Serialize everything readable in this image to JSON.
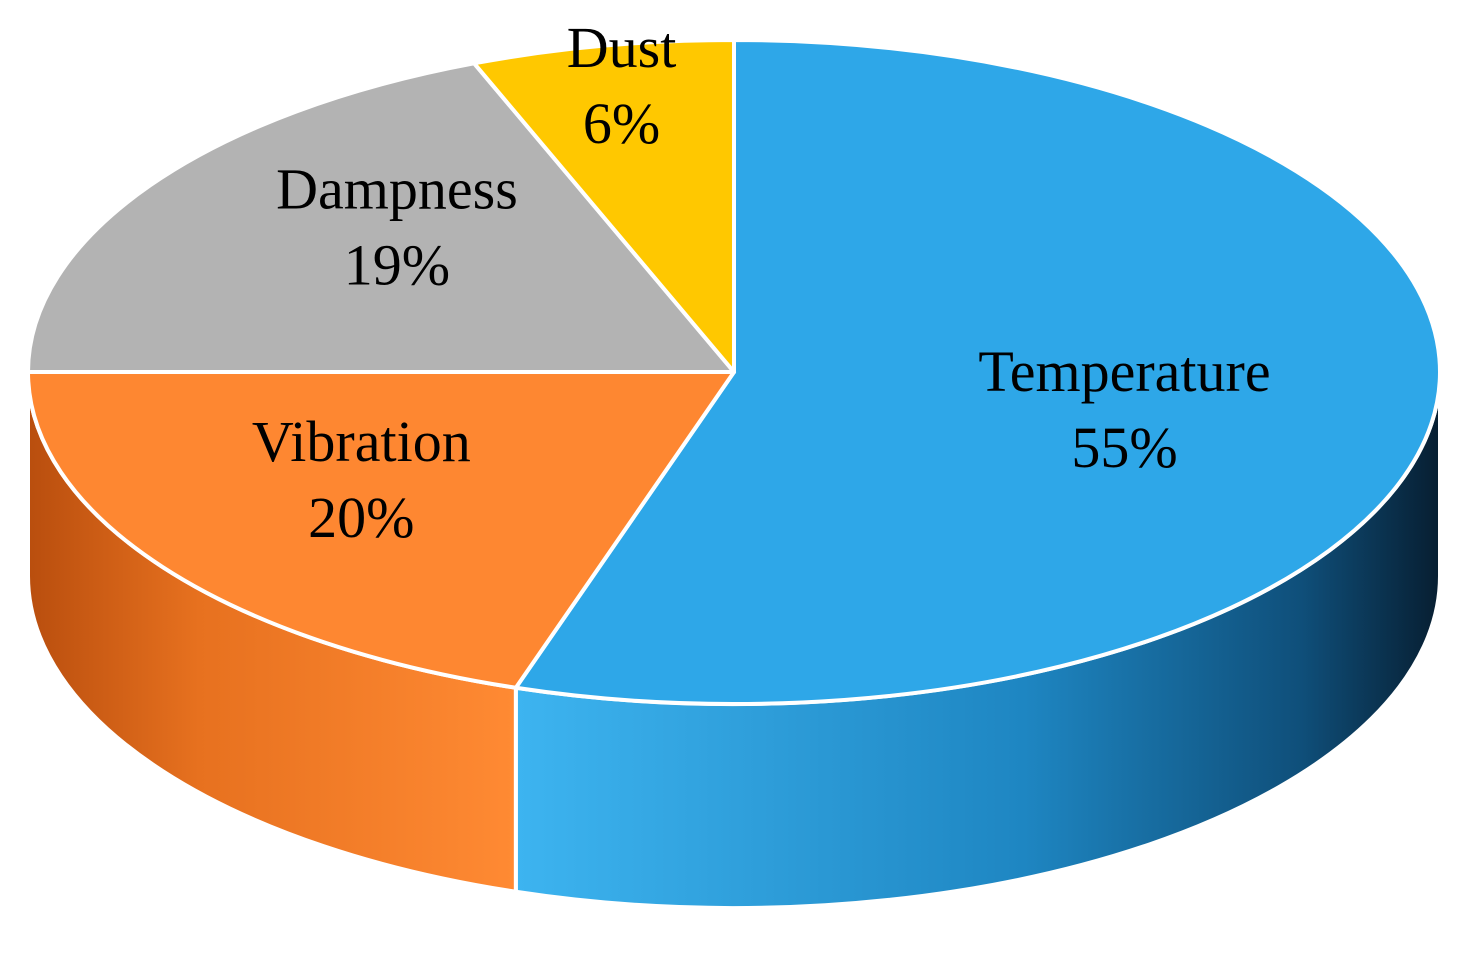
{
  "chart_data": {
    "type": "pie",
    "title": "",
    "legend": "none",
    "slices": [
      {
        "label": "Temperature",
        "value": 55,
        "value_label": "55%",
        "color": "#2EA7E8"
      },
      {
        "label": "Vibration",
        "value": 20,
        "value_label": "20%",
        "color": "#FE8731"
      },
      {
        "label": "Dampness",
        "value": 19,
        "value_label": "19%",
        "color": "#B3B3B3"
      },
      {
        "label": "Dust",
        "value": 6,
        "value_label": "6%",
        "color": "#FFC800"
      }
    ]
  }
}
